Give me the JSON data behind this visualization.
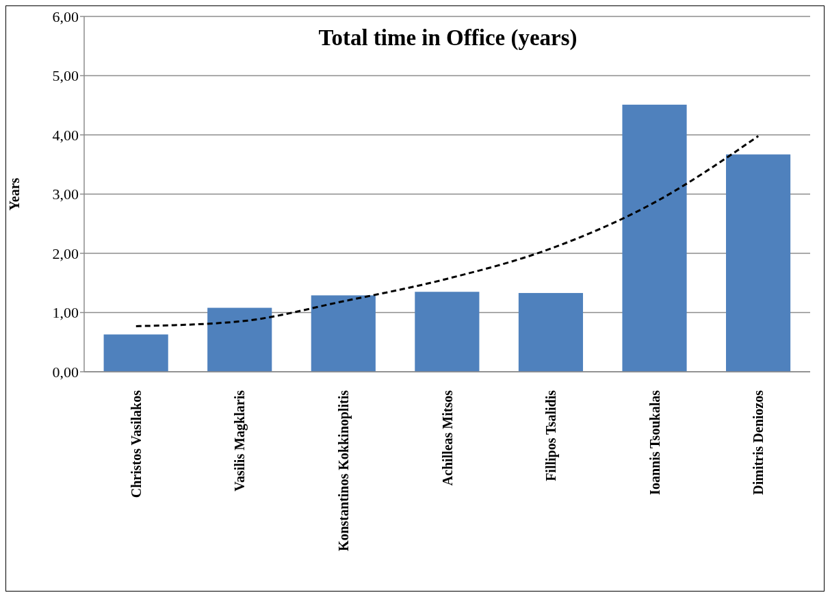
{
  "chart_data": {
    "type": "bar",
    "title": "Total time in Office (years)",
    "ylabel": "Years",
    "categories": [
      "Christos Vasilakos",
      "Vasilis Magklaris",
      "Konstantinos Kokkinoplitis",
      "Achilleas Mitsos",
      "Fillipos Tsalidis",
      "Ioannis Tsoukalas",
      "Dimitris Deniozos"
    ],
    "series": [
      {
        "color": "#4f81bd",
        "values": [
          0.63,
          1.08,
          1.29,
          1.35,
          1.33,
          4.51,
          3.67
        ]
      },
      {
        "type": "line",
        "color": "#000000",
        "line_style": "dashed",
        "marker": "none",
        "values": [
          0.77,
          0.85,
          1.19,
          1.57,
          2.08,
          2.86,
          3.98
        ]
      }
    ],
    "ylim": [
      0,
      6
    ],
    "yticks": [
      {
        "value": 0,
        "label": "0,00"
      },
      {
        "value": 1,
        "label": "1,00"
      },
      {
        "value": 2,
        "label": "2,00"
      },
      {
        "value": 3,
        "label": "3,00"
      },
      {
        "value": 4,
        "label": "4,00"
      },
      {
        "value": 5,
        "label": "5,00"
      },
      {
        "value": 6,
        "label": "6,00"
      }
    ],
    "grid": "y"
  }
}
